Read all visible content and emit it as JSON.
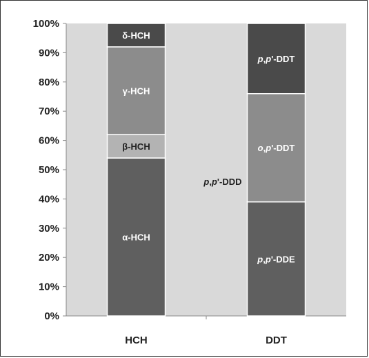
{
  "chart_data": {
    "type": "bar",
    "stacked": true,
    "normalized": true,
    "categories": [
      "HCH",
      "DDT"
    ],
    "yticks": [
      "0%",
      "10%",
      "20%",
      "30%",
      "40%",
      "50%",
      "60%",
      "70%",
      "80%",
      "90%",
      "100%"
    ],
    "ylim": [
      0,
      100
    ],
    "grid": false,
    "plot_background": "#d9d9d9",
    "bars": [
      {
        "category": "HCH",
        "segments": [
          {
            "label": "α-HCH",
            "value": 54,
            "color": "#5f5f5f"
          },
          {
            "label": "β-HCH",
            "value": 8,
            "color": "#b3b3b3"
          },
          {
            "label": "γ-HCH",
            "value": 30,
            "color": "#8c8c8c"
          },
          {
            "label": "δ-HCH",
            "value": 8,
            "color": "#4a4a4a"
          }
        ]
      },
      {
        "category": "DDT",
        "segments": [
          {
            "label": "p,p'-DDE",
            "value": 39,
            "color": "#5f5f5f"
          },
          {
            "label": "p,p'-DDD",
            "value": 0,
            "color": "#d9d9d9"
          },
          {
            "label": "o,p'-DDT",
            "value": 37,
            "color": "#8c8c8c"
          },
          {
            "label": "p,p'-DDT",
            "value": 24,
            "color": "#4a4a4a"
          }
        ]
      }
    ]
  }
}
